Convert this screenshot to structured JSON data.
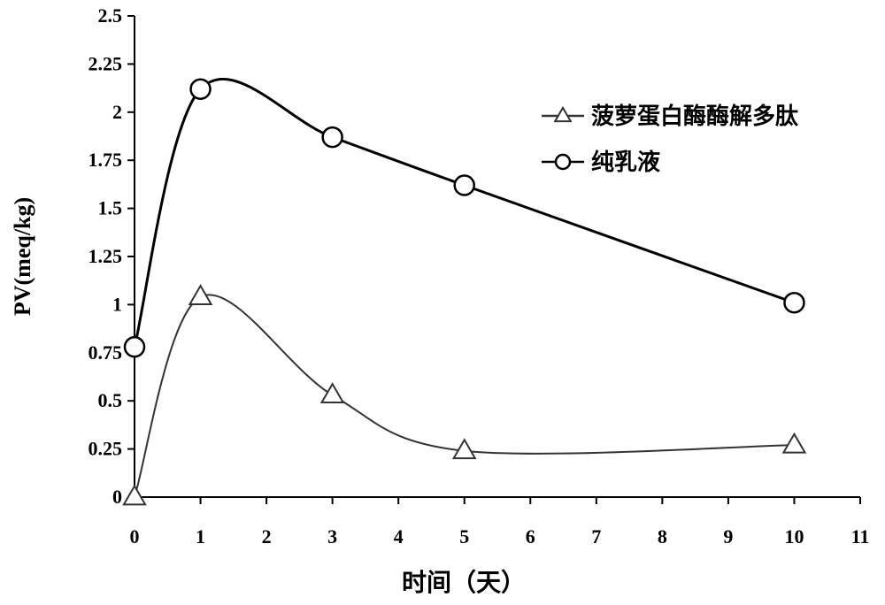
{
  "chart_data": {
    "type": "line",
    "xlabel": "时间（天）",
    "ylabel": "PV(meq/kg)",
    "xlim": [
      0,
      11
    ],
    "ylim": [
      0,
      2.5
    ],
    "x_ticks": [
      "0",
      "1",
      "2",
      "3",
      "4",
      "5",
      "6",
      "7",
      "8",
      "9",
      "10",
      "11"
    ],
    "y_ticks": [
      "0",
      "0.25",
      "0.5",
      "0.75",
      "1",
      "1.25",
      "1.5",
      "1.75",
      "2",
      "2.25",
      "2.5"
    ],
    "grid": false,
    "legend_position": "top-right",
    "series": [
      {
        "name": "菠萝蛋白酶酶解多肽",
        "marker": "triangle",
        "color": "#333333",
        "points": [
          [
            0,
            0
          ],
          [
            1,
            1.04
          ],
          [
            3,
            0.53
          ],
          [
            5,
            0.24
          ],
          [
            10,
            0.27
          ]
        ]
      },
      {
        "name": "纯乳液",
        "marker": "circle",
        "color": "#000000",
        "points": [
          [
            0,
            0.78
          ],
          [
            1,
            2.12
          ],
          [
            3,
            1.87
          ],
          [
            5,
            1.62
          ],
          [
            10,
            1.01
          ]
        ]
      }
    ]
  }
}
